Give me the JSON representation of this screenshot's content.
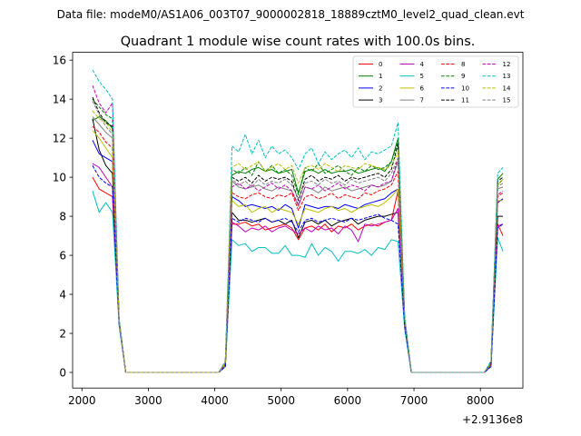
{
  "suptitle": "Data file: modeM0/AS1A06_003T07_9000002818_18889cztM0_level2_quad_clean.evt",
  "chart_data": {
    "type": "line",
    "title": "Quadrant 1 module wise count rates with 100.0s bins.",
    "xlabel": "",
    "ylabel": "",
    "x_offset_label": "+2.9136e8",
    "xlim": [
      1860,
      8640
    ],
    "ylim": [
      -0.8,
      16.4
    ],
    "xticks": [
      2000,
      3000,
      4000,
      5000,
      6000,
      7000,
      8000
    ],
    "yticks": [
      0,
      2,
      4,
      6,
      8,
      10,
      12,
      14,
      16
    ],
    "grid": false,
    "legend": "top-right",
    "x": [
      2160,
      2260,
      2360,
      2460,
      2560,
      2660,
      2760,
      2860,
      2960,
      3060,
      3160,
      3260,
      3360,
      3460,
      3560,
      3660,
      3760,
      3860,
      3960,
      4060,
      4160,
      4260,
      4360,
      4460,
      4560,
      4660,
      4760,
      4860,
      4960,
      5060,
      5160,
      5260,
      5360,
      5460,
      5560,
      5660,
      5760,
      5860,
      5960,
      6060,
      6160,
      6260,
      6360,
      6460,
      6560,
      6660,
      6760,
      6860,
      6960,
      7060,
      7160,
      7260,
      7360,
      7460,
      7560,
      7660,
      7760,
      7860,
      7960,
      8060,
      8160,
      8260,
      8340
    ],
    "series": [
      {
        "name": "0",
        "color": "#ff0000",
        "dash": false,
        "values": [
          10.0,
          9.4,
          9.2,
          9.0,
          2.5,
          0.0,
          0.0,
          0.0,
          0.0,
          0.0,
          0.0,
          0.0,
          0.0,
          0.0,
          0.0,
          0.0,
          0.0,
          0.0,
          0.0,
          0.0,
          0.3,
          7.6,
          7.6,
          7.7,
          7.5,
          7.6,
          7.3,
          7.4,
          7.5,
          7.6,
          7.4,
          6.8,
          7.4,
          7.5,
          7.3,
          7.6,
          7.2,
          7.5,
          7.4,
          7.6,
          7.3,
          7.5,
          7.6,
          7.5,
          7.7,
          7.8,
          9.3,
          2.5,
          0.0,
          0.0,
          0.0,
          0.0,
          0.0,
          0.0,
          0.0,
          0.0,
          0.0,
          0.0,
          0.0,
          0.0,
          0.3,
          7.6,
          7.0
        ]
      },
      {
        "name": "1",
        "color": "#008000",
        "dash": false,
        "values": [
          12.9,
          13.1,
          12.9,
          12.5,
          2.6,
          0.0,
          0.0,
          0.0,
          0.0,
          0.0,
          0.0,
          0.0,
          0.0,
          0.0,
          0.0,
          0.0,
          0.0,
          0.0,
          0.0,
          0.0,
          0.5,
          10.1,
          10.3,
          10.2,
          10.4,
          10.5,
          10.3,
          10.4,
          10.2,
          10.3,
          10.4,
          9.2,
          10.3,
          10.4,
          10.2,
          10.4,
          10.2,
          10.3,
          10.3,
          10.4,
          10.2,
          10.3,
          10.4,
          10.5,
          10.3,
          10.8,
          12.0,
          2.8,
          0.0,
          0.0,
          0.0,
          0.0,
          0.0,
          0.0,
          0.0,
          0.0,
          0.0,
          0.0,
          0.0,
          0.0,
          0.5,
          9.9,
          10.2
        ]
      },
      {
        "name": "2",
        "color": "#0000ff",
        "dash": false,
        "values": [
          11.9,
          11.2,
          11.0,
          10.8,
          2.5,
          0.0,
          0.0,
          0.0,
          0.0,
          0.0,
          0.0,
          0.0,
          0.0,
          0.0,
          0.0,
          0.0,
          0.0,
          0.0,
          0.0,
          0.0,
          0.4,
          9.0,
          8.8,
          8.5,
          8.6,
          8.5,
          8.4,
          8.5,
          8.3,
          8.6,
          8.4,
          7.4,
          8.6,
          8.5,
          8.4,
          8.5,
          8.5,
          8.4,
          8.6,
          8.5,
          8.4,
          8.6,
          8.7,
          8.8,
          8.9,
          9.2,
          9.4,
          2.5,
          0.0,
          0.0,
          0.0,
          0.0,
          0.0,
          0.0,
          0.0,
          0.0,
          0.0,
          0.0,
          0.0,
          0.0,
          0.4,
          8.7,
          8.9
        ]
      },
      {
        "name": "3",
        "color": "#000000",
        "dash": false,
        "values": [
          13.0,
          11.4,
          10.6,
          10.2,
          2.5,
          0.0,
          0.0,
          0.0,
          0.0,
          0.0,
          0.0,
          0.0,
          0.0,
          0.0,
          0.0,
          0.0,
          0.0,
          0.0,
          0.0,
          0.0,
          0.4,
          8.2,
          7.8,
          7.8,
          7.7,
          7.8,
          7.9,
          7.7,
          7.8,
          7.6,
          7.8,
          6.9,
          7.7,
          7.8,
          7.6,
          7.8,
          7.5,
          7.7,
          7.8,
          7.9,
          7.6,
          7.8,
          7.9,
          8.0,
          8.0,
          8.1,
          8.2,
          2.5,
          0.0,
          0.0,
          0.0,
          0.0,
          0.0,
          0.0,
          0.0,
          0.0,
          0.0,
          0.0,
          0.0,
          0.0,
          0.4,
          8.0,
          8.0
        ]
      },
      {
        "name": "4",
        "color": "#c000c0",
        "dash": false,
        "values": [
          10.7,
          10.5,
          10.0,
          9.5,
          2.5,
          0.0,
          0.0,
          0.0,
          0.0,
          0.0,
          0.0,
          0.0,
          0.0,
          0.0,
          0.0,
          0.0,
          0.0,
          0.0,
          0.0,
          0.0,
          0.3,
          7.7,
          7.5,
          7.2,
          7.4,
          7.3,
          7.5,
          7.2,
          7.4,
          7.5,
          7.3,
          7.1,
          7.4,
          7.2,
          7.5,
          7.3,
          7.4,
          7.1,
          7.5,
          7.3,
          6.7,
          7.6,
          7.5,
          7.6,
          7.7,
          7.8,
          8.4,
          2.4,
          0.0,
          0.0,
          0.0,
          0.0,
          0.0,
          0.0,
          0.0,
          0.0,
          0.0,
          0.0,
          0.0,
          0.0,
          0.3,
          7.5,
          7.6
        ]
      },
      {
        "name": "5",
        "color": "#00bfbf",
        "dash": false,
        "values": [
          9.3,
          8.2,
          8.7,
          8.2,
          2.4,
          0.0,
          0.0,
          0.0,
          0.0,
          0.0,
          0.0,
          0.0,
          0.0,
          0.0,
          0.0,
          0.0,
          0.0,
          0.0,
          0.0,
          0.0,
          0.3,
          6.8,
          6.5,
          6.6,
          6.2,
          6.4,
          6.4,
          6.1,
          6.1,
          6.5,
          6.0,
          6.0,
          5.9,
          6.6,
          6.0,
          6.4,
          6.2,
          5.7,
          6.2,
          6.2,
          6.1,
          6.3,
          6.0,
          6.4,
          6.3,
          6.8,
          6.7,
          2.2,
          0.0,
          0.0,
          0.0,
          0.0,
          0.0,
          0.0,
          0.0,
          0.0,
          0.0,
          0.0,
          0.0,
          0.0,
          0.3,
          6.9,
          6.2
        ]
      },
      {
        "name": "6",
        "color": "#bfbf00",
        "dash": false,
        "values": [
          12.4,
          12.0,
          11.5,
          11.0,
          2.6,
          0.0,
          0.0,
          0.0,
          0.0,
          0.0,
          0.0,
          0.0,
          0.0,
          0.0,
          0.0,
          0.0,
          0.0,
          0.0,
          0.0,
          0.0,
          0.4,
          8.8,
          8.5,
          8.6,
          8.2,
          8.4,
          8.5,
          8.2,
          8.4,
          8.3,
          8.2,
          7.6,
          8.4,
          8.3,
          8.2,
          8.4,
          8.5,
          8.3,
          8.4,
          8.2,
          8.4,
          8.5,
          8.6,
          8.5,
          8.7,
          9.0,
          9.4,
          2.6,
          0.0,
          0.0,
          0.0,
          0.0,
          0.0,
          0.0,
          0.0,
          0.0,
          0.0,
          0.0,
          0.0,
          0.0,
          0.4,
          8.8,
          8.8
        ]
      },
      {
        "name": "7",
        "color": "#808080",
        "dash": false,
        "values": [
          13.1,
          12.7,
          12.3,
          12.0,
          2.6,
          0.0,
          0.0,
          0.0,
          0.0,
          0.0,
          0.0,
          0.0,
          0.0,
          0.0,
          0.0,
          0.0,
          0.0,
          0.0,
          0.0,
          0.0,
          0.5,
          9.8,
          9.5,
          9.4,
          9.5,
          9.6,
          9.4,
          9.3,
          9.5,
          9.4,
          9.3,
          8.5,
          9.5,
          9.4,
          9.2,
          9.5,
          9.3,
          9.4,
          9.5,
          9.3,
          9.4,
          9.5,
          9.6,
          9.5,
          9.6,
          9.8,
          10.8,
          2.7,
          0.0,
          0.0,
          0.0,
          0.0,
          0.0,
          0.0,
          0.0,
          0.0,
          0.0,
          0.0,
          0.0,
          0.0,
          0.5,
          9.4,
          9.5
        ]
      },
      {
        "name": "8",
        "color": "#ff0000",
        "dash": true,
        "values": [
          12.6,
          12.3,
          11.8,
          11.5,
          2.6,
          0.0,
          0.0,
          0.0,
          0.0,
          0.0,
          0.0,
          0.0,
          0.0,
          0.0,
          0.0,
          0.0,
          0.0,
          0.0,
          0.0,
          0.0,
          0.4,
          9.2,
          9.0,
          8.9,
          9.1,
          9.2,
          9.0,
          8.9,
          9.1,
          9.0,
          9.2,
          8.3,
          9.0,
          9.1,
          8.9,
          9.0,
          9.2,
          8.9,
          9.1,
          9.0,
          8.9,
          9.2,
          9.1,
          9.3,
          9.4,
          9.6,
          10.3,
          2.6,
          0.0,
          0.0,
          0.0,
          0.0,
          0.0,
          0.0,
          0.0,
          0.0,
          0.0,
          0.0,
          0.0,
          0.0,
          0.4,
          9.0,
          9.2
        ]
      },
      {
        "name": "9",
        "color": "#008000",
        "dash": true,
        "values": [
          14.0,
          13.6,
          13.2,
          13.0,
          2.7,
          0.0,
          0.0,
          0.0,
          0.0,
          0.0,
          0.0,
          0.0,
          0.0,
          0.0,
          0.0,
          0.0,
          0.0,
          0.0,
          0.0,
          0.0,
          0.5,
          10.4,
          10.2,
          10.5,
          10.1,
          10.8,
          10.3,
          10.6,
          10.2,
          10.4,
          10.1,
          9.1,
          10.5,
          10.3,
          10.7,
          10.2,
          10.4,
          10.6,
          10.3,
          10.1,
          10.5,
          10.3,
          10.6,
          10.4,
          10.5,
          10.8,
          11.8,
          2.8,
          0.0,
          0.0,
          0.0,
          0.0,
          0.0,
          0.0,
          0.0,
          0.0,
          0.0,
          0.0,
          0.0,
          0.0,
          0.5,
          9.6,
          9.9
        ]
      },
      {
        "name": "10",
        "color": "#0000ff",
        "dash": true,
        "values": [
          10.6,
          10.0,
          9.7,
          9.5,
          2.5,
          0.0,
          0.0,
          0.0,
          0.0,
          0.0,
          0.0,
          0.0,
          0.0,
          0.0,
          0.0,
          0.0,
          0.0,
          0.0,
          0.0,
          0.0,
          0.3,
          7.9,
          7.7,
          7.9,
          7.8,
          7.7,
          7.9,
          7.7,
          7.8,
          7.9,
          7.7,
          7.2,
          7.8,
          7.9,
          7.7,
          7.8,
          7.9,
          7.8,
          7.7,
          7.9,
          7.8,
          7.9,
          8.0,
          8.1,
          7.9,
          7.8,
          7.6,
          2.4,
          0.0,
          0.0,
          0.0,
          0.0,
          0.0,
          0.0,
          0.0,
          0.0,
          0.0,
          0.0,
          0.0,
          0.0,
          0.3,
          7.4,
          7.6
        ]
      },
      {
        "name": "11",
        "color": "#000000",
        "dash": true,
        "values": [
          14.1,
          13.3,
          12.8,
          12.6,
          2.7,
          0.0,
          0.0,
          0.0,
          0.0,
          0.0,
          0.0,
          0.0,
          0.0,
          0.0,
          0.0,
          0.0,
          0.0,
          0.0,
          0.0,
          0.0,
          0.5,
          10.0,
          9.8,
          10.0,
          9.7,
          10.1,
          9.8,
          10.0,
          9.9,
          10.0,
          9.8,
          8.8,
          9.9,
          10.1,
          9.8,
          10.0,
          9.9,
          10.1,
          9.8,
          10.0,
          9.9,
          10.0,
          10.1,
          10.2,
          10.0,
          10.4,
          11.7,
          2.8,
          0.0,
          0.0,
          0.0,
          0.0,
          0.0,
          0.0,
          0.0,
          0.0,
          0.0,
          0.0,
          0.0,
          0.0,
          0.5,
          9.8,
          10.0
        ]
      },
      {
        "name": "12",
        "color": "#c000c0",
        "dash": true,
        "values": [
          14.7,
          13.8,
          13.3,
          13.8,
          2.7,
          0.0,
          0.0,
          0.0,
          0.0,
          0.0,
          0.0,
          0.0,
          0.0,
          0.0,
          0.0,
          0.0,
          0.0,
          0.0,
          0.0,
          0.0,
          0.5,
          9.5,
          9.7,
          9.4,
          9.6,
          9.3,
          9.5,
          9.7,
          9.4,
          9.6,
          9.3,
          8.6,
          9.5,
          9.4,
          9.6,
          9.3,
          9.5,
          9.7,
          9.4,
          9.6,
          9.5,
          9.3,
          9.6,
          9.5,
          9.7,
          9.8,
          11.0,
          2.7,
          0.0,
          0.0,
          0.0,
          0.0,
          0.0,
          0.0,
          0.0,
          0.0,
          0.0,
          0.0,
          0.0,
          0.0,
          0.5,
          9.1,
          9.3
        ]
      },
      {
        "name": "13",
        "color": "#00bfbf",
        "dash": true,
        "values": [
          15.5,
          14.9,
          14.5,
          14.0,
          2.8,
          0.0,
          0.0,
          0.0,
          0.0,
          0.0,
          0.0,
          0.0,
          0.0,
          0.0,
          0.0,
          0.0,
          0.0,
          0.0,
          0.0,
          0.0,
          0.6,
          11.6,
          11.3,
          12.2,
          11.2,
          11.9,
          11.0,
          11.6,
          11.2,
          11.4,
          11.0,
          10.4,
          11.2,
          11.5,
          10.7,
          11.3,
          10.9,
          11.2,
          11.4,
          11.0,
          11.5,
          10.9,
          11.3,
          11.2,
          11.4,
          11.6,
          12.8,
          2.9,
          0.0,
          0.0,
          0.0,
          0.0,
          0.0,
          0.0,
          0.0,
          0.0,
          0.0,
          0.0,
          0.0,
          0.0,
          0.6,
          10.2,
          10.5
        ]
      },
      {
        "name": "14",
        "color": "#bfbf00",
        "dash": true,
        "values": [
          13.4,
          13.0,
          12.8,
          12.3,
          2.7,
          0.0,
          0.0,
          0.0,
          0.0,
          0.0,
          0.0,
          0.0,
          0.0,
          0.0,
          0.0,
          0.0,
          0.0,
          0.0,
          0.0,
          0.0,
          0.5,
          10.5,
          10.7,
          10.4,
          10.6,
          10.8,
          10.3,
          10.5,
          10.7,
          10.4,
          10.6,
          9.7,
          10.5,
          10.6,
          10.4,
          10.7,
          10.5,
          10.3,
          10.6,
          10.5,
          10.4,
          10.7,
          10.6,
          10.5,
          10.4,
          10.6,
          11.3,
          2.8,
          0.0,
          0.0,
          0.0,
          0.0,
          0.0,
          0.0,
          0.0,
          0.0,
          0.0,
          0.0,
          0.0,
          0.0,
          0.5,
          9.6,
          9.9
        ]
      },
      {
        "name": "15",
        "color": "#808080",
        "dash": true,
        "values": [
          13.9,
          13.2,
          12.6,
          12.2,
          2.6,
          0.0,
          0.0,
          0.0,
          0.0,
          0.0,
          0.0,
          0.0,
          0.0,
          0.0,
          0.0,
          0.0,
          0.0,
          0.0,
          0.0,
          0.0,
          0.5,
          9.9,
          9.6,
          9.8,
          9.5,
          9.9,
          9.6,
          9.8,
          9.7,
          9.9,
          9.6,
          8.9,
          9.7,
          9.8,
          9.6,
          9.9,
          9.7,
          9.8,
          9.6,
          9.9,
          9.7,
          9.8,
          9.9,
          10.0,
          9.8,
          10.2,
          11.0,
          2.7,
          0.0,
          0.0,
          0.0,
          0.0,
          0.0,
          0.0,
          0.0,
          0.0,
          0.0,
          0.0,
          0.0,
          0.0,
          0.5,
          9.5,
          9.7
        ]
      }
    ]
  }
}
